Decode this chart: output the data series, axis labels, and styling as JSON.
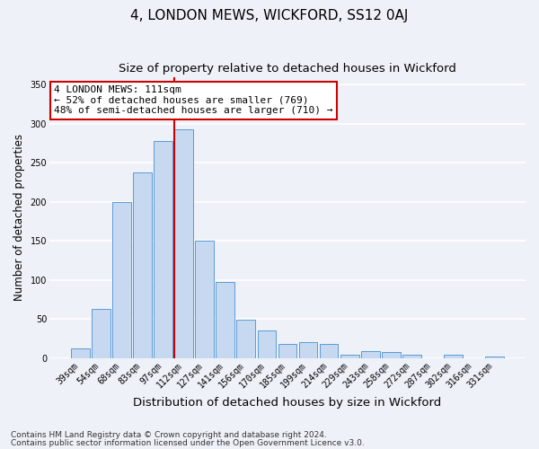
{
  "title": "4, LONDON MEWS, WICKFORD, SS12 0AJ",
  "subtitle": "Size of property relative to detached houses in Wickford",
  "xlabel": "Distribution of detached houses by size in Wickford",
  "ylabel": "Number of detached properties",
  "bar_labels": [
    "39sqm",
    "54sqm",
    "68sqm",
    "83sqm",
    "97sqm",
    "112sqm",
    "127sqm",
    "141sqm",
    "156sqm",
    "170sqm",
    "185sqm",
    "199sqm",
    "214sqm",
    "229sqm",
    "243sqm",
    "258sqm",
    "272sqm",
    "287sqm",
    "302sqm",
    "316sqm",
    "331sqm"
  ],
  "bar_heights": [
    13,
    63,
    200,
    238,
    278,
    293,
    150,
    97,
    49,
    35,
    18,
    20,
    18,
    4,
    9,
    8,
    4,
    0,
    5,
    0,
    2
  ],
  "bar_color": "#c6d9f0",
  "bar_edge_color": "#5b9bd5",
  "marker_index": 5,
  "marker_line_color": "#cc0000",
  "annotation_text": "4 LONDON MEWS: 111sqm\n← 52% of detached houses are smaller (769)\n48% of semi-detached houses are larger (710) →",
  "annotation_box_color": "#ffffff",
  "annotation_box_edge_color": "#cc0000",
  "ylim": [
    0,
    360
  ],
  "yticks": [
    0,
    50,
    100,
    150,
    200,
    250,
    300,
    350
  ],
  "footnote1": "Contains HM Land Registry data © Crown copyright and database right 2024.",
  "footnote2": "Contains public sector information licensed under the Open Government Licence v3.0.",
  "bg_color": "#eef2f8",
  "grid_color": "#ffffff",
  "title_fontsize": 11,
  "subtitle_fontsize": 9.5,
  "xlabel_fontsize": 9.5,
  "ylabel_fontsize": 8.5,
  "tick_fontsize": 7,
  "annotation_fontsize": 8,
  "footnote_fontsize": 6.5
}
